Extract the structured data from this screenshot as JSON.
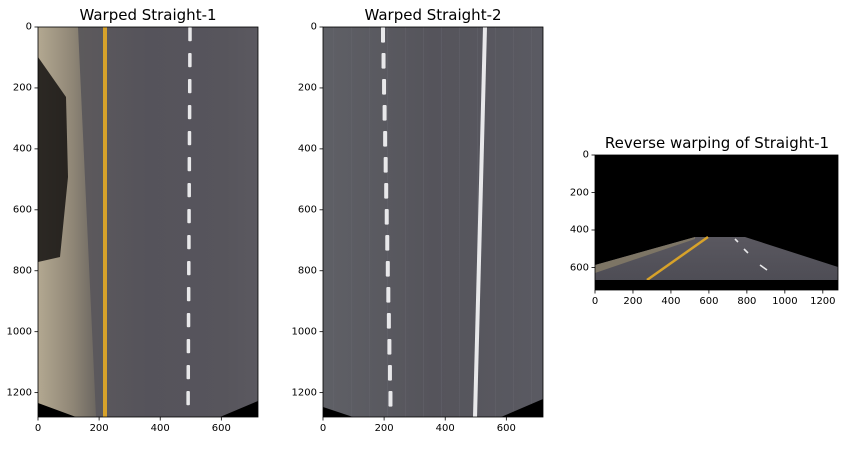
{
  "figure": {
    "panels": [
      {
        "title": "Warped Straight-1",
        "kind": "warped",
        "variant": 1,
        "xticks": [
          "0",
          "200",
          "400",
          "600"
        ],
        "yticks": [
          "0",
          "200",
          "400",
          "600",
          "800",
          "1000",
          "1200"
        ],
        "xrange": [
          0,
          720
        ],
        "yrange": [
          0,
          1280
        ]
      },
      {
        "title": "Warped Straight-2",
        "kind": "warped",
        "variant": 2,
        "xticks": [
          "0",
          "200",
          "400",
          "600"
        ],
        "yticks": [
          "0",
          "200",
          "400",
          "600",
          "800",
          "1000",
          "1200"
        ],
        "xrange": [
          0,
          720
        ],
        "yrange": [
          0,
          1280
        ]
      },
      {
        "title": "Reverse warping of Straight-1",
        "kind": "reverse",
        "variant": 3,
        "xticks": [
          "0",
          "200",
          "400",
          "600",
          "800",
          "1000",
          "1200"
        ],
        "yticks": [
          "0",
          "200",
          "400",
          "600"
        ],
        "xrange": [
          0,
          1280
        ],
        "yrange": [
          0,
          720
        ]
      }
    ],
    "colors": {
      "road": "#54525a",
      "yellow_line": "#d7a22a",
      "white_line": "#e8e8ea",
      "shoulder": "#a39a88",
      "black": "#000000"
    }
  }
}
